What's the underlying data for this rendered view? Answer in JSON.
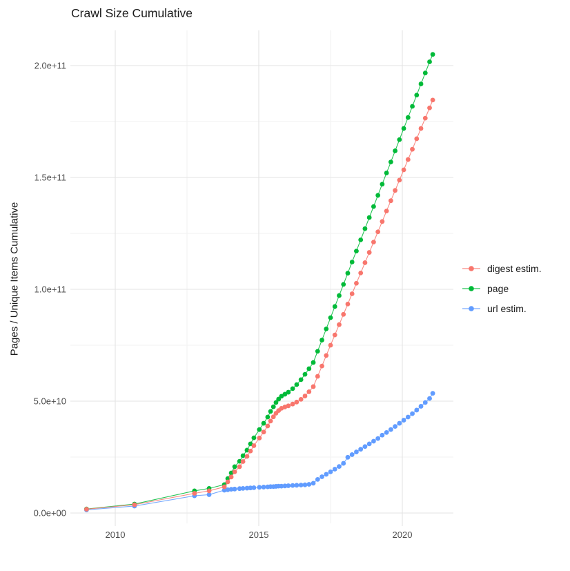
{
  "title": "Crawl Size Cumulative",
  "axes": {
    "y": {
      "label": "Pages / Unique Items Cumulative",
      "ticks": [
        {
          "label": "0.0e+00",
          "value": 0
        },
        {
          "label": "5.0e+10",
          "value": 50000000000.0
        },
        {
          "label": "1.0e+11",
          "value": 100000000000.0
        },
        {
          "label": "1.5e+11",
          "value": 150000000000.0
        },
        {
          "label": "2.0e+11",
          "value": 200000000000.0
        }
      ],
      "minor_values": [
        25000000000.0,
        75000000000.0,
        125000000000.0,
        175000000000.0
      ],
      "limits": [
        0,
        217000000000.0
      ]
    },
    "x": {
      "label": "",
      "ticks": [
        {
          "label": "2010",
          "value": 2010
        },
        {
          "label": "2015",
          "value": 2015
        },
        {
          "label": "2020",
          "value": 2020
        }
      ],
      "minor_values": [
        2012.5,
        2017.5
      ],
      "limits": [
        2008.4,
        2021.8
      ]
    }
  },
  "legend": {
    "items": [
      {
        "label": "digest estim.",
        "color": "#F8766D"
      },
      {
        "label": "page",
        "color": "#00BA38"
      },
      {
        "label": "url estim.",
        "color": "#619CFF"
      }
    ]
  },
  "colors": {
    "grid_major": "#E3E3E3",
    "grid_minor": "#F1F1F1",
    "tick_text": "#4D4D4D",
    "title_text": "#1A1A1A",
    "digest": "#F8766D",
    "page": "#00BA38",
    "url": "#619CFF"
  },
  "chart_data": {
    "type": "scatter",
    "title": "Crawl Size Cumulative",
    "xlabel": "",
    "ylabel": "Pages / Unique Items Cumulative",
    "xlim_years": [
      2008.4,
      2021.8
    ],
    "ylim": [
      0,
      217000000000.0
    ],
    "grid": "on",
    "legend_position": "right",
    "unit_note": "point values are billions (×1e9) of pages / unique items, cumulative",
    "series": [
      {
        "name": "digest estim.",
        "color": "#F8766D",
        "points": [
          [
            2009.0,
            1.7
          ],
          [
            2010.67,
            3.7
          ],
          [
            2012.76,
            8.8
          ],
          [
            2013.27,
            9.9
          ],
          [
            2013.8,
            11.7
          ],
          [
            2013.92,
            13.9
          ],
          [
            2014.04,
            16.1
          ],
          [
            2014.16,
            18.4
          ],
          [
            2014.33,
            20.7
          ],
          [
            2014.45,
            23.0
          ],
          [
            2014.59,
            25.3
          ],
          [
            2014.71,
            27.7
          ],
          [
            2014.83,
            30.1
          ],
          [
            2015.02,
            33.5
          ],
          [
            2015.17,
            36.2
          ],
          [
            2015.31,
            38.9
          ],
          [
            2015.41,
            41.1
          ],
          [
            2015.51,
            43.0
          ],
          [
            2015.6,
            44.6
          ],
          [
            2015.69,
            45.8
          ],
          [
            2015.79,
            46.8
          ],
          [
            2015.91,
            47.4
          ],
          [
            2016.03,
            47.9
          ],
          [
            2016.18,
            48.7
          ],
          [
            2016.32,
            49.6
          ],
          [
            2016.47,
            50.8
          ],
          [
            2016.61,
            52.3
          ],
          [
            2016.75,
            54.2
          ],
          [
            2016.9,
            56.5
          ],
          [
            2017.05,
            61.1
          ],
          [
            2017.2,
            65.7
          ],
          [
            2017.35,
            70.4
          ],
          [
            2017.5,
            75.0
          ],
          [
            2017.65,
            79.6
          ],
          [
            2017.8,
            84.2
          ],
          [
            2017.95,
            88.8
          ],
          [
            2018.1,
            93.4
          ],
          [
            2018.25,
            98.0
          ],
          [
            2018.4,
            102.7
          ],
          [
            2018.55,
            107.3
          ],
          [
            2018.7,
            111.9
          ],
          [
            2018.85,
            116.5
          ],
          [
            2019.0,
            121.1
          ],
          [
            2019.15,
            125.7
          ],
          [
            2019.3,
            130.3
          ],
          [
            2019.45,
            135.0
          ],
          [
            2019.6,
            139.6
          ],
          [
            2019.75,
            144.2
          ],
          [
            2019.9,
            148.8
          ],
          [
            2020.05,
            153.4
          ],
          [
            2020.2,
            158.0
          ],
          [
            2020.35,
            162.6
          ],
          [
            2020.5,
            167.3
          ],
          [
            2020.65,
            171.9
          ],
          [
            2020.8,
            176.5
          ],
          [
            2020.95,
            181.1
          ],
          [
            2021.06,
            184.6
          ]
        ]
      },
      {
        "name": "page",
        "color": "#00BA38",
        "points": [
          [
            2009.0,
            1.8
          ],
          [
            2010.67,
            4.0
          ],
          [
            2012.76,
            9.9
          ],
          [
            2013.27,
            11.0
          ],
          [
            2013.8,
            12.7
          ],
          [
            2013.92,
            15.4
          ],
          [
            2014.04,
            17.9
          ],
          [
            2014.16,
            20.7
          ],
          [
            2014.33,
            23.1
          ],
          [
            2014.45,
            25.6
          ],
          [
            2014.59,
            28.1
          ],
          [
            2014.71,
            30.9
          ],
          [
            2014.83,
            33.6
          ],
          [
            2015.02,
            37.3
          ],
          [
            2015.17,
            40.1
          ],
          [
            2015.31,
            42.9
          ],
          [
            2015.41,
            45.4
          ],
          [
            2015.51,
            47.5
          ],
          [
            2015.6,
            49.4
          ],
          [
            2015.69,
            50.9
          ],
          [
            2015.79,
            52.2
          ],
          [
            2015.91,
            53.1
          ],
          [
            2016.03,
            54.0
          ],
          [
            2016.18,
            55.6
          ],
          [
            2016.32,
            57.4
          ],
          [
            2016.47,
            59.6
          ],
          [
            2016.61,
            62.0
          ],
          [
            2016.75,
            64.5
          ],
          [
            2016.9,
            67.3
          ],
          [
            2017.05,
            72.3
          ],
          [
            2017.2,
            77.3
          ],
          [
            2017.35,
            82.3
          ],
          [
            2017.5,
            87.3
          ],
          [
            2017.65,
            92.3
          ],
          [
            2017.8,
            97.2
          ],
          [
            2017.95,
            102.2
          ],
          [
            2018.1,
            107.2
          ],
          [
            2018.25,
            112.2
          ],
          [
            2018.4,
            117.1
          ],
          [
            2018.55,
            122.1
          ],
          [
            2018.7,
            127.1
          ],
          [
            2018.85,
            132.1
          ],
          [
            2019.0,
            137.0
          ],
          [
            2019.15,
            142.0
          ],
          [
            2019.3,
            147.0
          ],
          [
            2019.45,
            152.0
          ],
          [
            2019.6,
            156.9
          ],
          [
            2019.75,
            161.9
          ],
          [
            2019.9,
            166.9
          ],
          [
            2020.05,
            171.9
          ],
          [
            2020.2,
            176.8
          ],
          [
            2020.35,
            181.8
          ],
          [
            2020.5,
            186.8
          ],
          [
            2020.65,
            191.8
          ],
          [
            2020.8,
            196.7
          ],
          [
            2020.95,
            201.7
          ],
          [
            2021.06,
            205.0
          ]
        ]
      },
      {
        "name": "url estim.",
        "color": "#619CFF",
        "points": [
          [
            2009.0,
            1.4
          ],
          [
            2010.67,
            3.1
          ],
          [
            2012.76,
            7.7
          ],
          [
            2013.27,
            8.2
          ],
          [
            2013.8,
            10.2
          ],
          [
            2013.92,
            10.4
          ],
          [
            2014.04,
            10.6
          ],
          [
            2014.16,
            10.7
          ],
          [
            2014.33,
            10.9
          ],
          [
            2014.45,
            11.0
          ],
          [
            2014.59,
            11.1
          ],
          [
            2014.71,
            11.2
          ],
          [
            2014.83,
            11.3
          ],
          [
            2015.02,
            11.5
          ],
          [
            2015.17,
            11.6
          ],
          [
            2015.31,
            11.7
          ],
          [
            2015.41,
            11.8
          ],
          [
            2015.51,
            11.8
          ],
          [
            2015.6,
            11.9
          ],
          [
            2015.69,
            12.0
          ],
          [
            2015.79,
            12.0
          ],
          [
            2015.91,
            12.1
          ],
          [
            2016.03,
            12.2
          ],
          [
            2016.18,
            12.3
          ],
          [
            2016.32,
            12.4
          ],
          [
            2016.47,
            12.5
          ],
          [
            2016.61,
            12.6
          ],
          [
            2016.75,
            12.8
          ],
          [
            2016.9,
            13.3
          ],
          [
            2017.05,
            15.0
          ],
          [
            2017.2,
            16.2
          ],
          [
            2017.35,
            17.3
          ],
          [
            2017.5,
            18.4
          ],
          [
            2017.65,
            19.6
          ],
          [
            2017.8,
            20.8
          ],
          [
            2017.95,
            22.2
          ],
          [
            2018.1,
            24.9
          ],
          [
            2018.25,
            26.1
          ],
          [
            2018.4,
            27.3
          ],
          [
            2018.55,
            28.5
          ],
          [
            2018.7,
            29.7
          ],
          [
            2018.85,
            30.9
          ],
          [
            2019.0,
            32.1
          ],
          [
            2019.15,
            33.3
          ],
          [
            2019.3,
            34.8
          ],
          [
            2019.45,
            36.0
          ],
          [
            2019.6,
            37.3
          ],
          [
            2019.75,
            38.7
          ],
          [
            2019.9,
            40.1
          ],
          [
            2020.05,
            41.5
          ],
          [
            2020.2,
            42.9
          ],
          [
            2020.35,
            44.4
          ],
          [
            2020.5,
            46.0
          ],
          [
            2020.65,
            47.7
          ],
          [
            2020.8,
            49.4
          ],
          [
            2020.95,
            51.2
          ],
          [
            2021.06,
            53.5
          ]
        ]
      }
    ]
  }
}
